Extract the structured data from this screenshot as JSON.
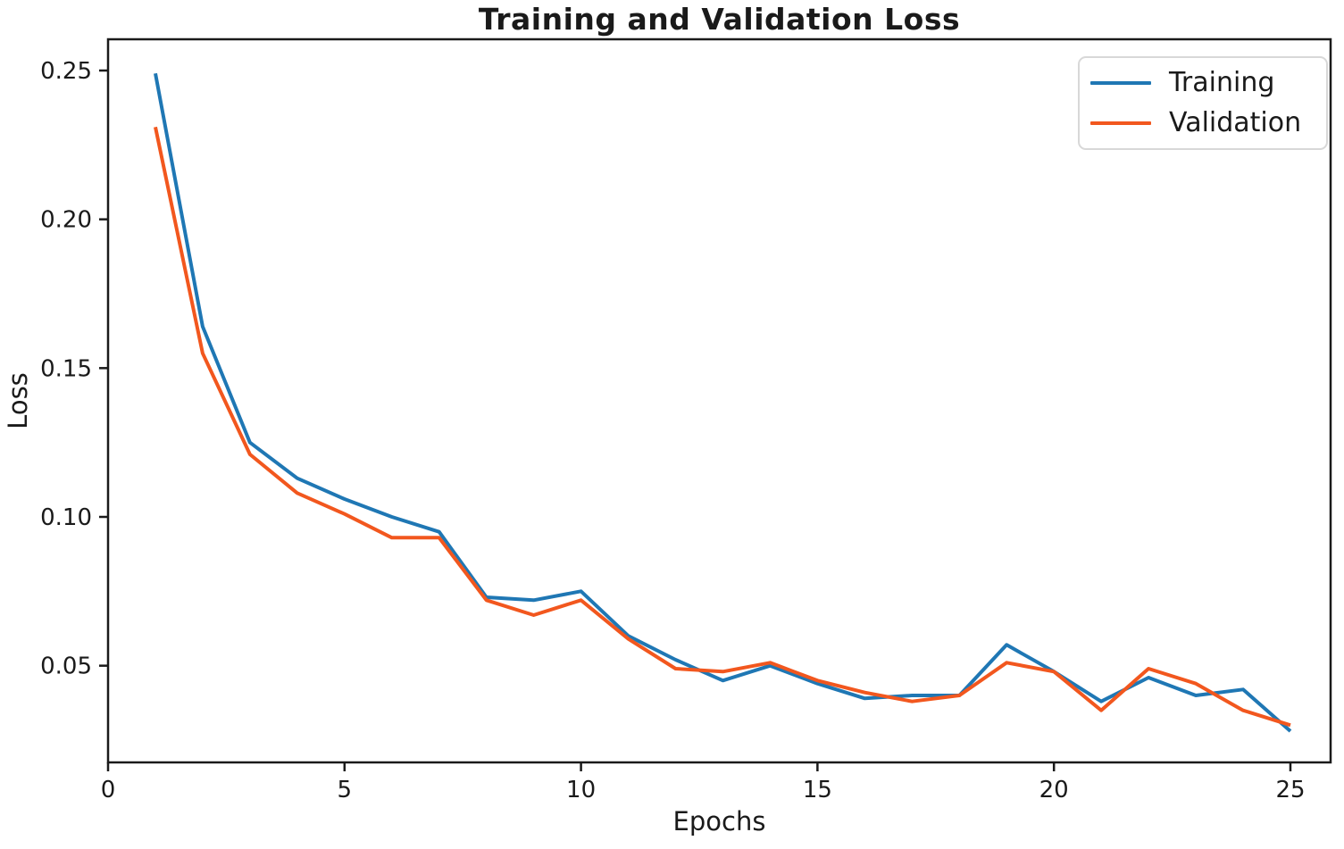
{
  "chart_data": {
    "type": "line",
    "title": "Training and Validation Loss",
    "xlabel": "Epochs",
    "ylabel": "Loss",
    "x": [
      1,
      2,
      3,
      4,
      5,
      6,
      7,
      8,
      9,
      10,
      11,
      12,
      13,
      14,
      15,
      16,
      17,
      18,
      19,
      20,
      21,
      22,
      23,
      24,
      25
    ],
    "series": [
      {
        "name": "Training",
        "color": "#1f77b4",
        "values": [
          0.249,
          0.164,
          0.125,
          0.113,
          0.106,
          0.1,
          0.095,
          0.073,
          0.072,
          0.075,
          0.06,
          0.052,
          0.045,
          0.05,
          0.044,
          0.039,
          0.04,
          0.04,
          0.057,
          0.048,
          0.038,
          0.046,
          0.04,
          0.042,
          0.028
        ]
      },
      {
        "name": "Validation",
        "color": "#f2571e",
        "values": [
          0.231,
          0.155,
          0.121,
          0.108,
          0.101,
          0.093,
          0.093,
          0.072,
          0.067,
          0.072,
          0.059,
          0.049,
          0.048,
          0.051,
          0.045,
          0.041,
          0.038,
          0.04,
          0.051,
          0.048,
          0.035,
          0.049,
          0.044,
          0.035,
          0.03
        ]
      }
    ],
    "xticks": [
      0,
      5,
      10,
      15,
      20,
      25
    ],
    "xtick_labels": [
      "0",
      "5",
      "10",
      "15",
      "20",
      "25"
    ],
    "yticks": [
      0.05,
      0.1,
      0.15,
      0.2,
      0.25
    ],
    "ytick_labels": [
      "0.05",
      "0.10",
      "0.15",
      "0.20",
      "0.25"
    ],
    "xlim": [
      0,
      25.85
    ],
    "ylim": [
      0.0175,
      0.2605
    ],
    "grid": false,
    "legend_position": "upper right",
    "axis_color": "#1a1a1a"
  }
}
